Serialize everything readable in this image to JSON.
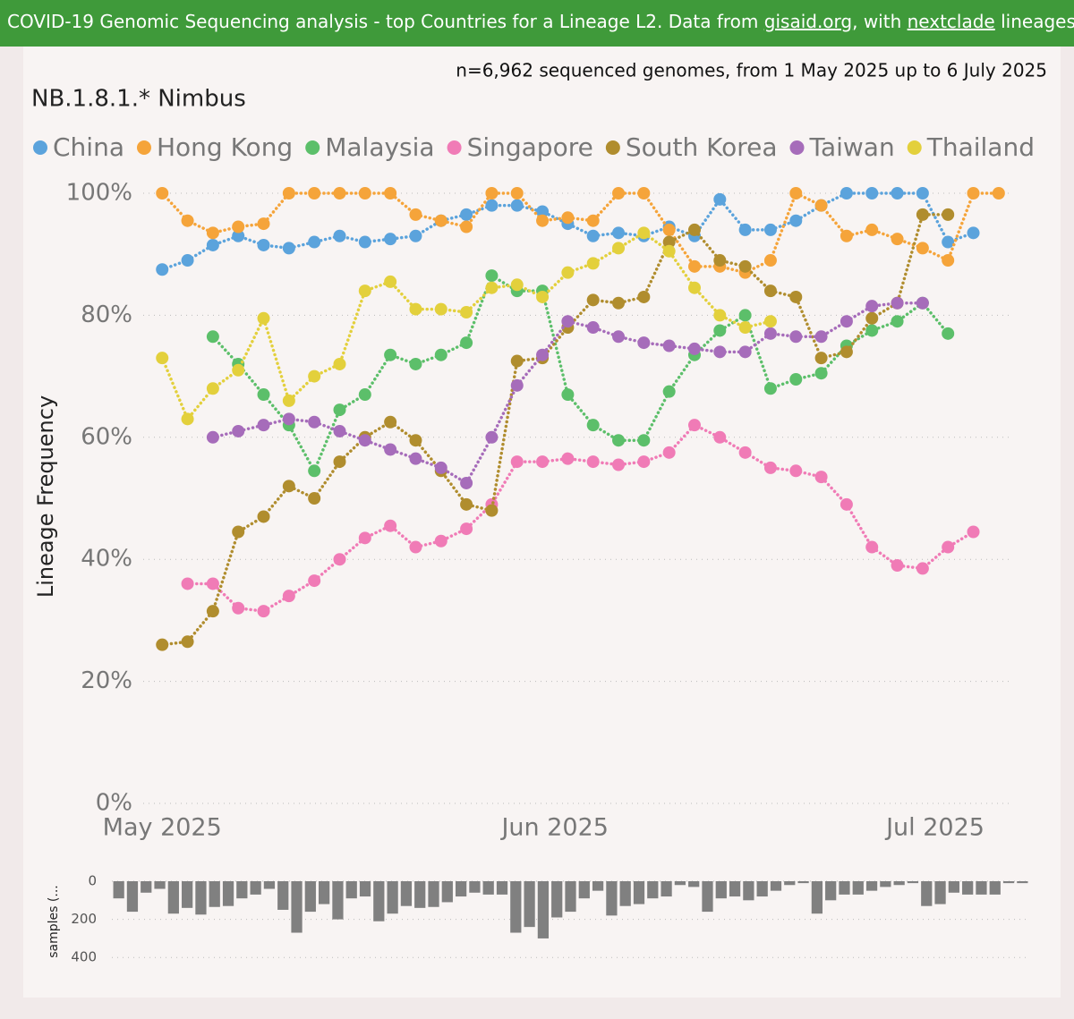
{
  "header": {
    "parts": [
      "COVID-19 Genomic Sequencing analysis - top Countries for a Lineage L2. Data from ",
      "gisaid.org",
      ", with ",
      "nextclade",
      " lineages Sourc"
    ]
  },
  "chart_data": [
    {
      "type": "line",
      "title": "NB.1.8.1.* Nimbus",
      "subtitle": "n=6,962 sequenced genomes, from 1 May 2025 up to 6 July 2025",
      "ylabel": "Lineage Frequency",
      "x": [
        0,
        2,
        4,
        6,
        8,
        10,
        12,
        14,
        16,
        18,
        20,
        22,
        24,
        26,
        28,
        30,
        32,
        34,
        36,
        38,
        40,
        42,
        44,
        46,
        48,
        50,
        52,
        54,
        56,
        58,
        60,
        62,
        64,
        66
      ],
      "xlim": [
        -1.5,
        67
      ],
      "xticks": [
        {
          "value": 0,
          "label": "May 2025"
        },
        {
          "value": 31,
          "label": "Jun 2025"
        },
        {
          "value": 61,
          "label": "Jul 2025"
        }
      ],
      "ylim": [
        0,
        100
      ],
      "yticks": [
        {
          "value": 0,
          "label": "0%"
        },
        {
          "value": 20,
          "label": "20%"
        },
        {
          "value": 40,
          "label": "40%"
        },
        {
          "value": 60,
          "label": "60%"
        },
        {
          "value": 80,
          "label": "80%"
        },
        {
          "value": 100,
          "label": "100%"
        }
      ],
      "grid": true,
      "series": [
        {
          "name": "China",
          "color": "#5ba3dc",
          "values": [
            87.5,
            89,
            91.5,
            93,
            91.5,
            91,
            92,
            93,
            92,
            92.5,
            93,
            95.5,
            96.5,
            98,
            98,
            97,
            95,
            93,
            93.5,
            93,
            94.5,
            93,
            99,
            94,
            94,
            95.5,
            98,
            100,
            100,
            100,
            100,
            92,
            93.5,
            null
          ]
        },
        {
          "name": "Hong Kong",
          "color": "#f5a43a",
          "values": [
            100,
            95.5,
            93.5,
            94.5,
            95,
            100,
            100,
            100,
            100,
            100,
            96.5,
            95.5,
            94.5,
            100,
            100,
            95.5,
            96,
            95.5,
            100,
            100,
            94,
            88,
            88,
            87,
            89,
            100,
            98,
            93,
            94,
            92.5,
            91,
            89,
            100,
            100
          ]
        },
        {
          "name": "Malaysia",
          "color": "#5cbf6a",
          "values": [
            null,
            null,
            76.5,
            72,
            67,
            62,
            54.5,
            64.5,
            67,
            73.5,
            72,
            73.5,
            75.5,
            86.5,
            84,
            84,
            67,
            62,
            59.5,
            59.5,
            67.5,
            73.5,
            77.5,
            80,
            68,
            69.5,
            70.5,
            75,
            77.5,
            79,
            82,
            77,
            null,
            null
          ]
        },
        {
          "name": "Singapore",
          "color": "#f07bb6",
          "values": [
            null,
            36,
            36,
            32,
            31.5,
            34,
            36.5,
            40,
            43.5,
            45.5,
            42,
            43,
            45,
            49,
            56,
            56,
            56.5,
            56,
            55.5,
            56,
            57.5,
            62,
            60,
            57.5,
            55,
            54.5,
            53.5,
            49,
            42,
            39,
            38.5,
            42,
            44.5,
            null
          ]
        },
        {
          "name": "South Korea",
          "color": "#b08d2e",
          "values": [
            26,
            26.5,
            31.5,
            44.5,
            47,
            52,
            50,
            56,
            60,
            62.5,
            59.5,
            54.5,
            49,
            48,
            72.5,
            73,
            78,
            82.5,
            82,
            83,
            92,
            94,
            89,
            88,
            84,
            83,
            73,
            74,
            79.5,
            82,
            96.5,
            96.5,
            null,
            null
          ]
        },
        {
          "name": "Taiwan",
          "color": "#a66cba",
          "values": [
            null,
            null,
            60,
            61,
            62,
            63,
            62.5,
            61,
            59.5,
            58,
            56.5,
            55,
            52.5,
            60,
            68.5,
            73.5,
            79,
            78,
            76.5,
            75.5,
            75,
            74.5,
            74,
            74,
            77,
            76.5,
            76.5,
            79,
            81.5,
            82,
            82,
            null,
            null,
            null
          ]
        },
        {
          "name": "Thailand",
          "color": "#e3d03c",
          "values": [
            73,
            63,
            68,
            71,
            79.5,
            66,
            70,
            72,
            84,
            85.5,
            81,
            81,
            80.5,
            84.5,
            85,
            83,
            87,
            88.5,
            91,
            93.5,
            90.5,
            84.5,
            80,
            78,
            79,
            null,
            null,
            null,
            null,
            null,
            null,
            null,
            null,
            null
          ]
        }
      ]
    },
    {
      "type": "bar",
      "ylabel": "samples (...",
      "color": "#808080",
      "ylim": [
        0,
        420
      ],
      "yticks": [
        0,
        200,
        400
      ],
      "grid": true,
      "values": [
        90,
        160,
        60,
        40,
        170,
        140,
        175,
        135,
        130,
        90,
        70,
        40,
        150,
        270,
        160,
        120,
        200,
        90,
        80,
        210,
        170,
        130,
        140,
        135,
        110,
        80,
        60,
        70,
        70,
        270,
        240,
        300,
        190,
        160,
        90,
        50,
        180,
        130,
        120,
        90,
        80,
        20,
        30,
        160,
        90,
        80,
        100,
        80,
        50,
        20,
        10,
        170,
        100,
        70,
        70,
        50,
        30,
        20,
        10,
        130,
        120,
        60,
        70,
        70,
        70,
        10,
        10
      ]
    }
  ]
}
